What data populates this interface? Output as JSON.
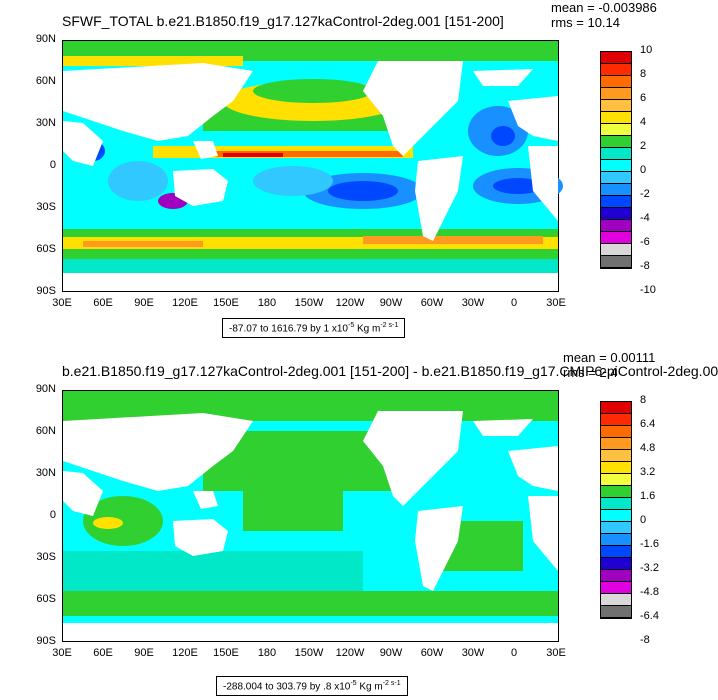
{
  "panel1": {
    "title": "SFWF_TOTAL b.e21.B1850.f19_g17.127kaControl-2deg.001 [151-200]",
    "mean": "mean = -0.003986",
    "rms": "rms = 10.14",
    "range_text": "-87.07 to 1616.79 by 1 x10",
    "range_exp": "-5",
    "range_unit": " Kg m",
    "range_unit_exp": "-2 s-1",
    "colorbar_labels": [
      "10",
      "8",
      "6",
      "4",
      "2",
      "0",
      "-2",
      "-4",
      "-6",
      "-8",
      "-10"
    ],
    "colorbar_colors": [
      "#e00000",
      "#ff2a00",
      "#ff6a00",
      "#ff9a20",
      "#ffc040",
      "#ffe000",
      "#f0ff40",
      "#30d030",
      "#00e8c8",
      "#00ffff",
      "#30c8ff",
      "#1890ff",
      "#0048ff",
      "#2000d0",
      "#a000c0",
      "#e000e0",
      "#d8d8d8",
      "#707070"
    ]
  },
  "panel2": {
    "title": "b.e21.B1850.f19_g17.127kaControl-2deg.001 [151-200] - b.e21.B1850.f19_g17.CMIP6-piControl-2deg.00",
    "mean": "mean = 0.00111",
    "rms": "rms = 2.4",
    "range_text": "-288.004 to 303.79 by .8 x10",
    "range_exp": "-5",
    "range_unit": " Kg m",
    "range_unit_exp": "-2 s-1",
    "colorbar_labels": [
      "8",
      "6.4",
      "4.8",
      "3.2",
      "1.6",
      "0",
      "-1.6",
      "-3.2",
      "-4.8",
      "-6.4",
      "-8"
    ],
    "colorbar_colors": [
      "#e00000",
      "#ff2a00",
      "#ff6a00",
      "#ff9a20",
      "#ffc040",
      "#ffe000",
      "#f0ff40",
      "#30d030",
      "#00e8c8",
      "#00ffff",
      "#30c8ff",
      "#1890ff",
      "#0048ff",
      "#2000d0",
      "#a000c0",
      "#e000e0",
      "#d8d8d8",
      "#707070"
    ]
  },
  "lat_labels": [
    "90N",
    "60N",
    "30N",
    "0",
    "30S",
    "60S",
    "90S"
  ],
  "lon_labels": [
    "30E",
    "60E",
    "90E",
    "120E",
    "150E",
    "180",
    "150W",
    "120W",
    "90W",
    "60W",
    "30W",
    "0",
    "30E"
  ]
}
